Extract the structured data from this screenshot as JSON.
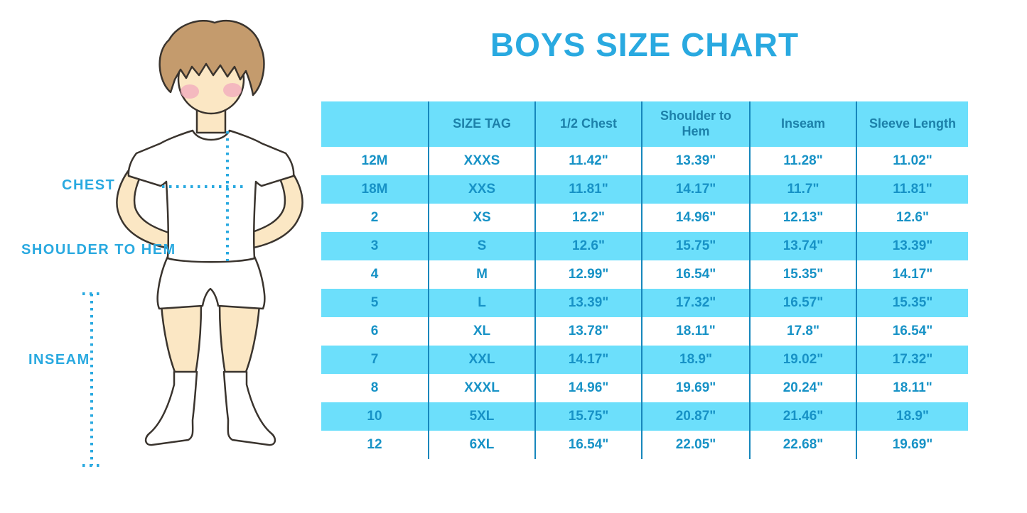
{
  "title": "BOYS SIZE CHART",
  "figure": {
    "chest_label": "CHEST",
    "shoulder_label": "SHOULDER TO HEM",
    "inseam_label": "INSEAM"
  },
  "chart_data": {
    "type": "table",
    "title": "BOYS SIZE CHART",
    "columns": [
      "",
      "SIZE TAG",
      "1/2 Chest",
      "Shoulder to Hem",
      "Inseam",
      "Sleeve Length"
    ],
    "rows": [
      [
        "12M",
        "XXXS",
        "11.42\"",
        "13.39\"",
        "11.28\"",
        "11.02\""
      ],
      [
        "18M",
        "XXS",
        "11.81\"",
        "14.17\"",
        "11.7\"",
        "11.81\""
      ],
      [
        "2",
        "XS",
        "12.2\"",
        "14.96\"",
        "12.13\"",
        "12.6\""
      ],
      [
        "3",
        "S",
        "12.6\"",
        "15.75\"",
        "13.74\"",
        "13.39\""
      ],
      [
        "4",
        "M",
        "12.99\"",
        "16.54\"",
        "15.35\"",
        "14.17\""
      ],
      [
        "5",
        "L",
        "13.39\"",
        "17.32\"",
        "16.57\"",
        "15.35\""
      ],
      [
        "6",
        "XL",
        "13.78\"",
        "18.11\"",
        "17.8\"",
        "16.54\""
      ],
      [
        "7",
        "XXL",
        "14.17\"",
        "18.9\"",
        "19.02\"",
        "17.32\""
      ],
      [
        "8",
        "XXXL",
        "14.96\"",
        "19.69\"",
        "20.24\"",
        "18.11\""
      ],
      [
        "10",
        "5XL",
        "15.75\"",
        "20.87\"",
        "21.46\"",
        "18.9\""
      ],
      [
        "12",
        "6XL",
        "16.54\"",
        "22.05\"",
        "22.68\"",
        "19.69\""
      ]
    ],
    "legend_position": "none",
    "grid": "vertical-dividers-only",
    "stripe_pattern": "header and every second body row highlighted"
  },
  "colors": {
    "accent": "#29A9E0",
    "stripe": "#6CDFFB",
    "divider": "#1787BC",
    "header_text": "#1C80A9",
    "cell_text": "#1792C6",
    "outline": "#3A342E",
    "skin": "#FBE7C4",
    "hair": "#C49B6D",
    "cheek": "#F2A9BD"
  }
}
